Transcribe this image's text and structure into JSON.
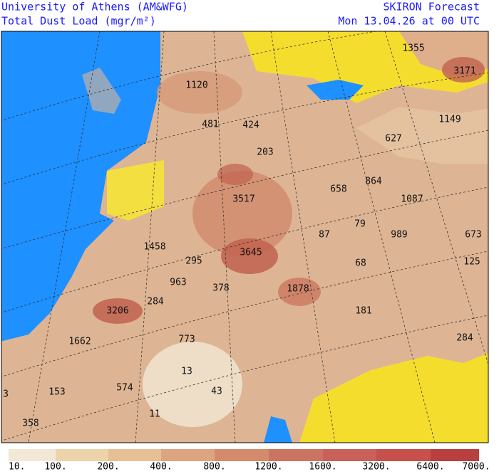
{
  "header": {
    "left": [
      "University of Athens (AM&WFG)",
      "Total Dust Load (mgr/m²)"
    ],
    "right": [
      "SKIRON Forecast",
      "Mon 13.04.26 at 00 UTC"
    ]
  },
  "map": {
    "labels": [
      "1355",
      "3171",
      "1120",
      "481",
      "424",
      "1149",
      "627",
      "203",
      "658",
      "864",
      "1087",
      "3517",
      "87",
      "79",
      "989",
      "673",
      "1458",
      "3645",
      "295",
      "68",
      "125",
      "963",
      "378",
      "1878",
      "3206",
      "284",
      "181",
      "1662",
      "773",
      "284",
      "13",
      "3",
      "153",
      "574",
      "43",
      "11",
      "358"
    ]
  },
  "colorbar": {
    "labels": [
      "10.",
      "100.",
      "200.",
      "400.",
      "800.",
      "1200.",
      "1600.",
      "3200.",
      "6400.",
      "7000."
    ]
  }
}
